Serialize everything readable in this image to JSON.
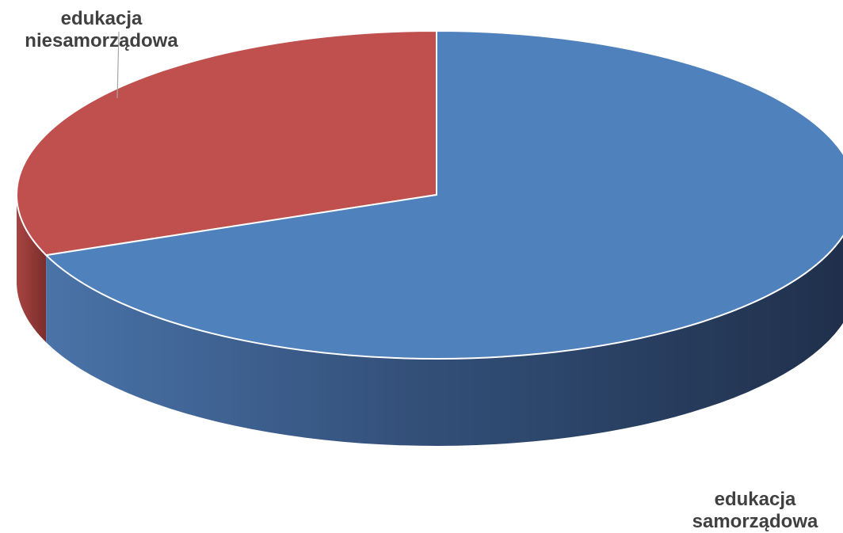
{
  "chart_data": {
    "type": "pie",
    "style": "3d",
    "slices": [
      {
        "name": "edukacja niesamorządowa",
        "label_lines": [
          "edukacja",
          "niesamorządowa"
        ],
        "value": 31,
        "color": "#C0504D"
      },
      {
        "name": "edukacja samorządowa",
        "label_lines": [
          "edukacja",
          "samorządowa"
        ],
        "value": 69,
        "color": "#4F81BD"
      }
    ],
    "legend": "none"
  }
}
